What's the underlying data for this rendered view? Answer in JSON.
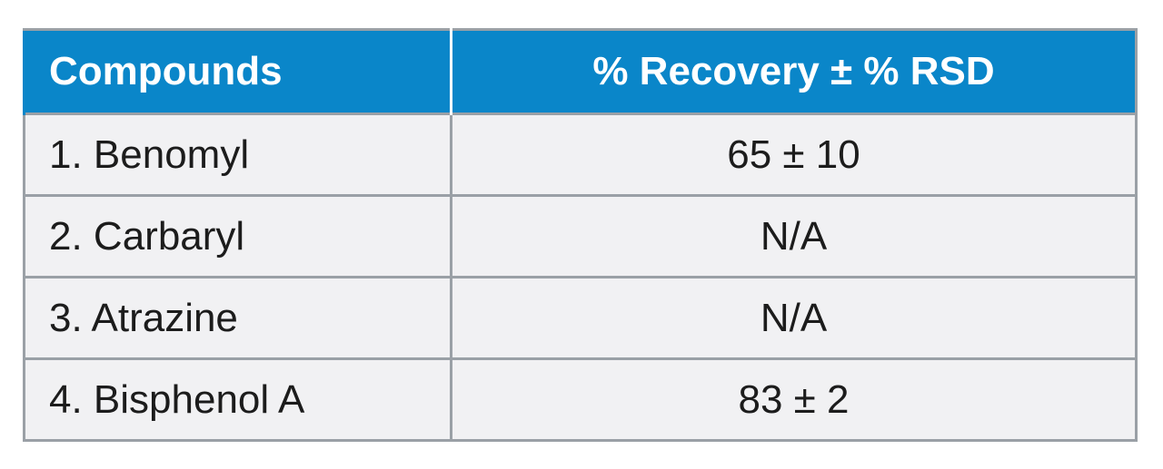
{
  "table": {
    "headers": [
      "Compounds",
      "% Recovery ± % RSD"
    ],
    "rows": [
      [
        "1. Benomyl",
        "65 ± 10"
      ],
      [
        "2. Carbaryl",
        "N/A"
      ],
      [
        "3. Atrazine",
        "N/A"
      ],
      [
        "4. Bisphenol A",
        "83 ± 2"
      ]
    ],
    "colors": {
      "header_bg": "#0a86c9",
      "header_text": "#ffffff",
      "row_bg": "#f1f1f3",
      "border": "#9aa0a6"
    }
  }
}
